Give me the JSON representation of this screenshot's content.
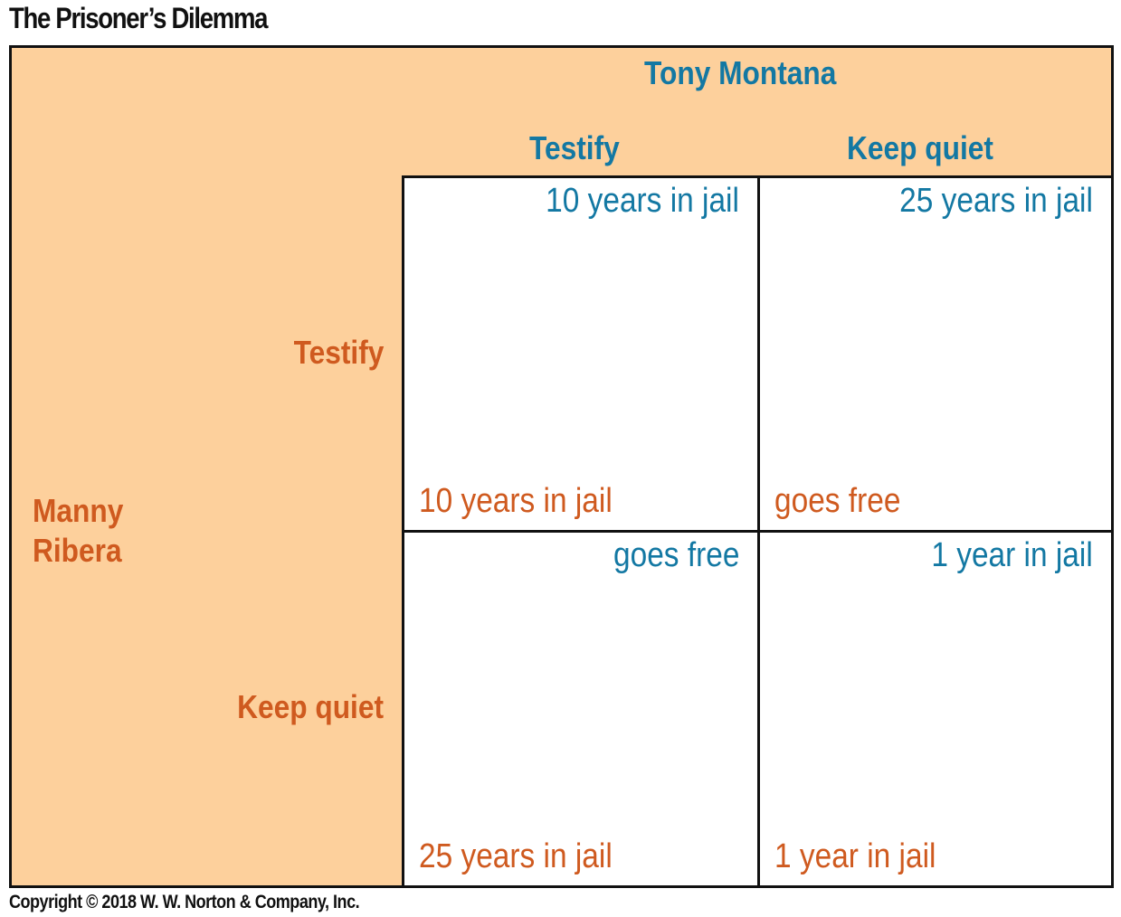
{
  "title": "The Prisoner’s Dilemma",
  "column_player": {
    "name": "Tony Montana",
    "strategies": [
      "Testify",
      "Keep quiet"
    ]
  },
  "row_player": {
    "name_lines": [
      "Manny",
      "Ribera"
    ],
    "strategies": [
      "Testify",
      "Keep quiet"
    ]
  },
  "payoffs": [
    [
      {
        "column_player": "10 years in jail",
        "row_player": "10 years in jail"
      },
      {
        "column_player": "25 years in jail",
        "row_player": "goes free"
      }
    ],
    [
      {
        "column_player": "goes free",
        "row_player": "25 years in jail"
      },
      {
        "column_player": "1 year in jail",
        "row_player": "1 year in jail"
      }
    ]
  ],
  "colors": {
    "background_panel": "#fdd09c",
    "column_player_text": "#1378a3",
    "row_player_text": "#cf5a1f",
    "border": "#111111"
  },
  "copyright": "Copyright © 2018 W. W. Norton & Company, Inc."
}
